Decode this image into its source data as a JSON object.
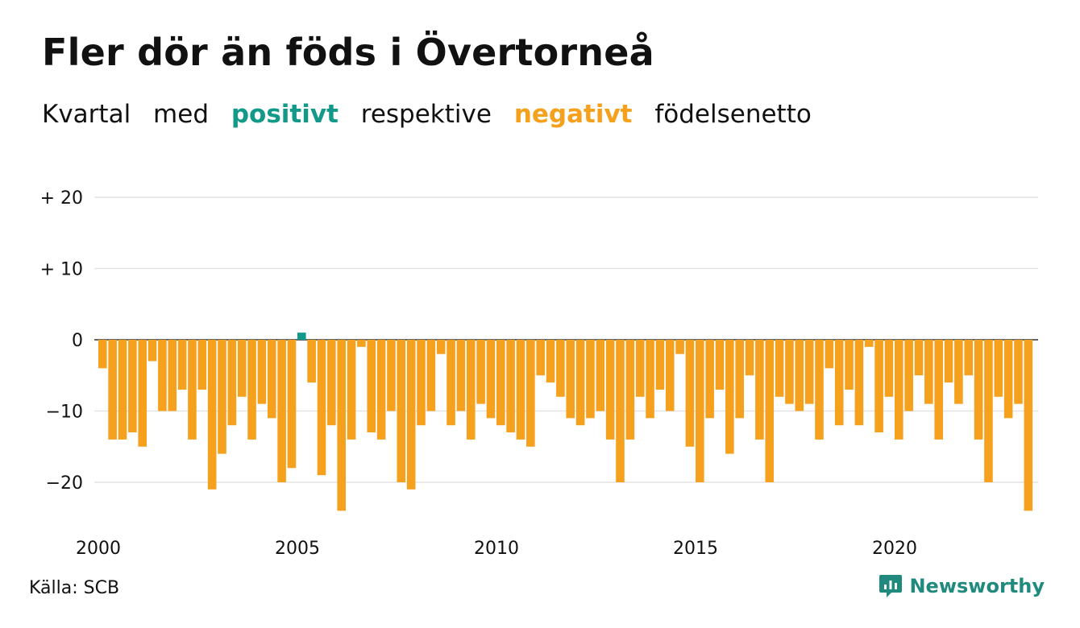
{
  "title": "Fler dör än föds i Övertorneå",
  "subtitle": {
    "prefix": "Kvartal",
    "word_med": "med",
    "positive_label": "positivt",
    "middle": "respektive",
    "negative_label": "negativt",
    "suffix": "födelsenetto"
  },
  "source": "Källa: SCB",
  "brand": "Newsworthy",
  "colors": {
    "positive": "#13998a",
    "negative": "#f5a11e",
    "grid": "#e3e3e3",
    "brand": "#1f8a7d"
  },
  "chart_data": {
    "type": "bar",
    "x_start": 2000,
    "frequency": "quarterly",
    "x_tick_labels": [
      "2000",
      "2005",
      "2010",
      "2015",
      "2020"
    ],
    "y_tick_labels": [
      "+ 20",
      "+ 10",
      "0",
      "−10",
      "−20"
    ],
    "y_ticks": [
      20,
      10,
      0,
      -10,
      -20
    ],
    "ylim": [
      -25,
      20
    ],
    "grid": true,
    "legend": "none",
    "values": [
      -4,
      -14,
      -14,
      -13,
      -15,
      -3,
      -10,
      -10,
      -7,
      -14,
      -7,
      -21,
      -16,
      -12,
      -8,
      -14,
      -9,
      -11,
      -20,
      -18,
      1,
      -6,
      -19,
      -12,
      -24,
      -14,
      -1,
      -13,
      -14,
      -10,
      -20,
      -21,
      -12,
      -10,
      -2,
      -12,
      -10,
      -14,
      -9,
      -11,
      -12,
      -13,
      -14,
      -15,
      -5,
      -6,
      -8,
      -11,
      -12,
      -11,
      -10,
      -14,
      -20,
      -14,
      -8,
      -11,
      -7,
      -10,
      -2,
      -15,
      -20,
      -11,
      -7,
      -16,
      -11,
      -5,
      -14,
      -20,
      -8,
      -9,
      -10,
      -9,
      -14,
      -4,
      -12,
      -7,
      -12,
      -1,
      -13,
      -8,
      -14,
      -10,
      -5,
      -9,
      -14,
      -6,
      -9,
      -5,
      -14,
      -20,
      -8,
      -11,
      -9,
      -24
    ]
  }
}
